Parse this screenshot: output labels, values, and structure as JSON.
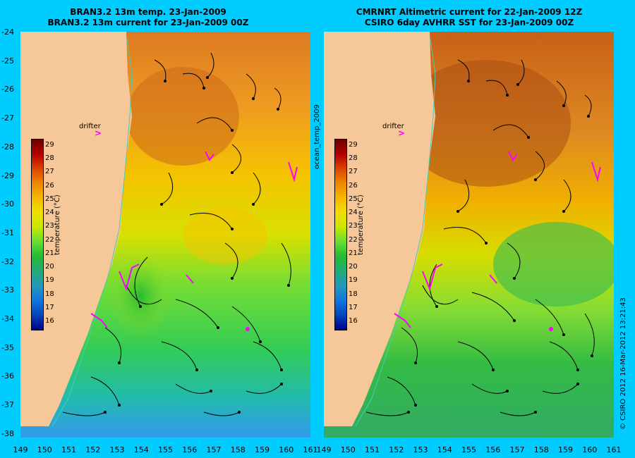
{
  "titles": {
    "left": [
      "BRAN3.2 13m temp. 23-Jan-2009",
      "BRAN3.2 13m current for 23-Jan-2009 00Z"
    ],
    "right": [
      "CMRNRT Altimetric current for 22-Jan-2009 12Z",
      "CSIRO 6day AVHRR SST for 23-Jan-2009 00Z"
    ]
  },
  "axes": {
    "y_ticks": [
      "-24",
      "-25",
      "-26",
      "-27",
      "-28",
      "-29",
      "-30",
      "-31",
      "-32",
      "-33",
      "-34",
      "-35",
      "-36",
      "-37",
      "-38"
    ],
    "x_ticks": [
      "149",
      "150",
      "151",
      "152",
      "153",
      "154",
      "155",
      "156",
      "157",
      "158",
      "159",
      "160",
      "161"
    ]
  },
  "colorbar": {
    "title": "temperature (°C)",
    "ticks": [
      "29",
      "28",
      "27",
      "26",
      "25",
      "24",
      "23",
      "22",
      "21",
      "20",
      "19",
      "18",
      "17",
      "16"
    ],
    "colors": [
      "#6b0000",
      "#b30000",
      "#dd4400",
      "#ee8800",
      "#f5b800",
      "#f0e000",
      "#c8e600",
      "#66dd33",
      "#22bb33",
      "#22aa77",
      "#2299bb",
      "#1177dd",
      "#0044bb",
      "#000088"
    ]
  },
  "labels": {
    "drifter": "drifter",
    "drifter_marker": ">",
    "middle": "ocean_temp_2009",
    "credit": "© CSIRO 2012  16-Mar-2012 13:21:43"
  },
  "colors": {
    "land": "#f6c799",
    "background": "#00ccff",
    "drifter": "#ff00ff"
  }
}
